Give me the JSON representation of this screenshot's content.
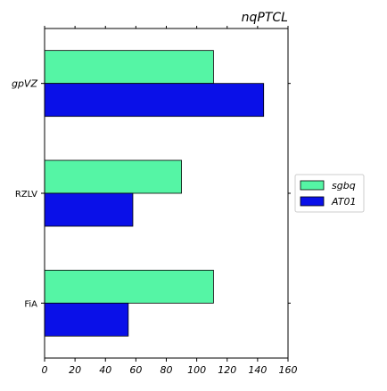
{
  "chart_data": {
    "type": "bar",
    "orientation": "horizontal",
    "title": "nqPTCL",
    "xlabel": "",
    "ylabel": "",
    "categories": [
      "gpVZ",
      "RZLV",
      "FiA"
    ],
    "category_italic": [
      true,
      false,
      false
    ],
    "series": [
      {
        "name": "sgbq",
        "values": [
          111,
          90,
          111
        ],
        "color": "#55f5a5"
      },
      {
        "name": "AT01",
        "values": [
          144,
          58,
          55
        ],
        "color": "#0a10e8"
      }
    ],
    "xlim": [
      0,
      160
    ],
    "xticks": [
      0,
      20,
      40,
      60,
      80,
      100,
      120,
      140,
      160
    ],
    "grid": false,
    "legend_position": "center-right"
  }
}
